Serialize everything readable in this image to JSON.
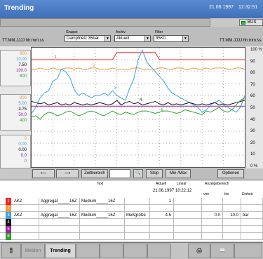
{
  "window": {
    "title": "Trending",
    "date": "21.06.1997",
    "time": "12:32:51"
  },
  "status": {
    "bus_label": "BUS",
    "bus_color": "#22cc22"
  },
  "header": {
    "group_label": "Gruppe",
    "group_value": "Dampfnetz 35bar",
    "archive_label": "Archiv",
    "archive_value": "Aktuell",
    "filter_label": "Filter",
    "filter_value": "35K0",
    "left_format": "TT.MM.JJJJ hh:mm:ss",
    "right_format": "TT.MM.JJJJ hh:mm:ss"
  },
  "scales": {
    "group1": [
      {
        "text": "900",
        "color": "#e89a40"
      },
      {
        "text": "10.00",
        "color": "#3aa0e0"
      },
      {
        "text": "7.50",
        "color": "#000000"
      },
      {
        "text": "100.0",
        "color": "#9020a0"
      },
      {
        "text": "800",
        "color": "#30a030"
      }
    ],
    "group2": [
      {
        "text": "800",
        "color": "#e89a40"
      },
      {
        "text": "5.00",
        "color": "#3aa0e0"
      },
      {
        "text": "3.75",
        "color": "#000000"
      },
      {
        "text": "50.0",
        "color": "#9020a0"
      },
      {
        "text": "400",
        "color": "#30a030"
      }
    ],
    "group3": [
      {
        "text": "0",
        "color": "#e89a40"
      },
      {
        "text": "0.00",
        "color": "#3aa0e0"
      },
      {
        "text": "0.00",
        "color": "#000000"
      },
      {
        "text": "0.0",
        "color": "#9020a0"
      },
      {
        "text": "0",
        "color": "#30a030"
      }
    ],
    "right_ticks": [
      "100 %",
      "90",
      "80",
      "70",
      "60",
      "50",
      "40",
      "30",
      "20",
      "10",
      "0 %"
    ]
  },
  "chart_data": {
    "type": "line",
    "y_range": [
      0,
      100
    ],
    "grid": true,
    "series": [
      {
        "name": "1",
        "color": "#ff2020",
        "values": [
          90,
          90,
          90,
          90,
          90,
          90,
          90,
          90,
          90,
          90,
          90,
          90,
          90,
          90,
          90,
          90,
          90,
          90,
          90,
          90,
          96,
          96,
          96,
          96,
          96,
          96,
          96,
          96,
          96,
          96,
          90,
          90,
          90,
          90,
          90,
          90,
          90,
          90,
          90,
          90,
          90,
          90,
          90,
          90,
          90,
          90,
          90,
          90,
          90,
          90,
          90
        ]
      },
      {
        "name": "2",
        "color": "#e89a40",
        "values": [
          82,
          82,
          83,
          82,
          82,
          83,
          82,
          82,
          83,
          83,
          82,
          83,
          82,
          82,
          83,
          83,
          82,
          82,
          82,
          83,
          82,
          82,
          82,
          82,
          83,
          83,
          82,
          82,
          82,
          82,
          83,
          83,
          82,
          82,
          83,
          83,
          82,
          82,
          83,
          82,
          82,
          83,
          82,
          83,
          83,
          83,
          82,
          82,
          83,
          83,
          82
        ]
      },
      {
        "name": "3",
        "color": "#3aa0e0",
        "values": [
          45,
          50,
          58,
          62,
          64,
          72,
          74,
          82,
          80,
          75,
          65,
          60,
          62,
          60,
          58,
          60,
          60,
          62,
          60,
          64,
          60,
          58,
          56,
          66,
          74,
          90,
          98,
          88,
          84,
          80,
          76,
          72,
          66,
          62,
          60,
          58,
          56,
          54,
          52,
          50,
          46,
          48,
          52,
          54,
          56,
          52,
          50,
          48,
          46,
          50,
          60
        ]
      },
      {
        "name": "4",
        "color": "#111111",
        "values": [
          55,
          54,
          53,
          54,
          52,
          53,
          54,
          52,
          53,
          52,
          54,
          53,
          52,
          53,
          52,
          53,
          54,
          53,
          52,
          53,
          56,
          52,
          54,
          55,
          53,
          54,
          52,
          53,
          54,
          55,
          53,
          52,
          54,
          52,
          53,
          52,
          53,
          54,
          53,
          52,
          53,
          52,
          53,
          54,
          52,
          53,
          52,
          53,
          54,
          55,
          56
        ]
      },
      {
        "name": "5",
        "color": "#a020a0",
        "values": [
          51,
          51,
          51,
          51,
          51,
          51,
          51,
          51,
          51,
          51,
          51,
          51,
          51,
          51,
          51,
          51,
          51,
          51,
          51,
          51,
          51,
          51,
          51,
          51,
          51,
          51,
          51,
          51,
          51,
          51,
          51,
          51,
          51,
          51,
          51,
          51,
          51,
          51,
          51,
          51,
          51,
          51,
          51,
          51,
          51,
          51,
          51,
          51,
          51,
          51,
          51
        ]
      },
      {
        "name": "6",
        "color": "#30a030",
        "values": [
          42,
          43,
          40,
          44,
          46,
          45,
          43,
          44,
          46,
          47,
          45,
          43,
          44,
          46,
          47,
          46,
          44,
          43,
          45,
          47,
          45,
          44,
          46,
          45,
          44,
          46,
          47,
          47,
          46,
          45,
          46,
          47,
          47,
          46,
          45,
          46,
          48,
          47,
          46,
          45,
          44,
          47,
          46,
          48,
          50,
          47,
          46,
          48,
          52,
          56,
          58
        ]
      }
    ]
  },
  "controls": {
    "zeitbereich": "Zeitbereich",
    "stop": "Stop",
    "minmax": "Min /Max",
    "optionen": "Optionen"
  },
  "table": {
    "headers": {
      "text": "Text",
      "aktuell": "Aktuell",
      "lineal": "Lineal",
      "anzeigebereich": "Anzeigebereich",
      "von": "von",
      "bis": "bis",
      "einheit": "Einheit"
    },
    "ruler_date": "21.06.1997",
    "ruler_time": "10:22:12",
    "rows": [
      {
        "num": "1",
        "color": "#ff2020",
        "c1": "AKZ",
        "c2": "Aggregat_____16Z",
        "c3": "Medium_____16Z",
        "c4": "",
        "aktuell": "1",
        "von": "",
        "bis": "",
        "einheit": ""
      },
      {
        "num": "2",
        "color": "#e89a40",
        "c1": "",
        "c2": "",
        "c3": "",
        "c4": "",
        "aktuell": "",
        "von": "",
        "bis": "",
        "einheit": ""
      },
      {
        "num": "3",
        "color": "#3aa0e0",
        "c1": "AKZ",
        "c2": "Aggregat_____16Z",
        "c3": "Medium_____16Z",
        "c4": "Meßgröße",
        "aktuell": "4.5",
        "von": "0.0",
        "bis": "10.0",
        "einheit": "bar"
      },
      {
        "num": "4",
        "color": "#111111",
        "c1": "",
        "c2": "",
        "c3": "",
        "c4": "",
        "aktuell": "",
        "von": "",
        "bis": "",
        "einheit": ""
      },
      {
        "num": "5",
        "color": "#a020a0",
        "c1": "",
        "c2": "",
        "c3": "",
        "c4": "",
        "aktuell": "",
        "von": "",
        "bis": "",
        "einheit": ""
      },
      {
        "num": "6",
        "color": "#30a030",
        "c1": "",
        "c2": "",
        "c3": "",
        "c4": "",
        "aktuell": "",
        "von": "",
        "bis": "",
        "einheit": ""
      }
    ]
  },
  "tabs": {
    "melden": "Melden",
    "trending": "Trending"
  }
}
